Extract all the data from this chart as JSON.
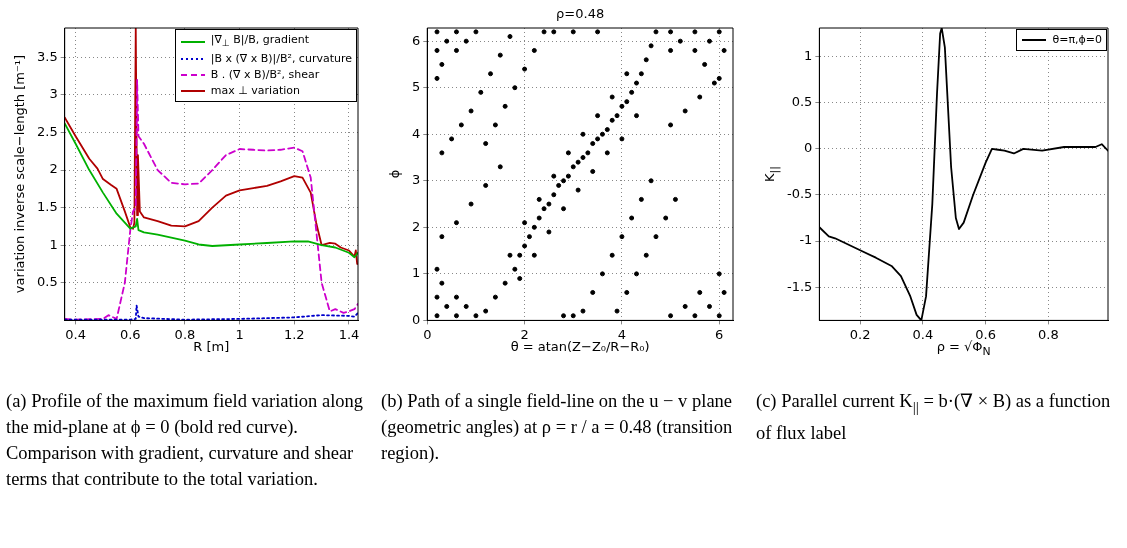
{
  "chart_data": [
    {
      "type": "line",
      "xlabel": "R [m]",
      "ylabel": "variation inverse scale−length [m⁻¹]",
      "xlim": [
        0.36,
        1.433
      ],
      "xticks": [
        0.4,
        0.6,
        0.8,
        1,
        1.2,
        1.4
      ],
      "ylim": [
        0,
        3.89
      ],
      "yticks": [
        0.5,
        1,
        1.5,
        2,
        2.5,
        3,
        3.5
      ],
      "grid": true,
      "legend": "top right",
      "marker": "none",
      "annotations": [
        "(a) Profile of the maximum field variation along the mid-plane at ϕ = 0 (bold red curve). Comparison with gradient, curvature and shear terms that contribute to the total variation."
      ],
      "series": [
        {
          "name": "|∇$_{⊥}$ B|/B, gradient",
          "color": "#00b000",
          "line_style": "solid",
          "x": [
            0.36,
            0.4,
            0.45,
            0.5,
            0.55,
            0.6,
            0.62,
            0.625,
            0.63,
            0.65,
            0.7,
            0.75,
            0.8,
            0.85,
            0.9,
            1.0,
            1.1,
            1.2,
            1.25,
            1.3,
            1.35,
            1.4,
            1.42,
            1.433
          ],
          "values": [
            2.62,
            2.35,
            2.0,
            1.7,
            1.42,
            1.22,
            1.25,
            1.35,
            1.2,
            1.17,
            1.14,
            1.1,
            1.06,
            1.01,
            0.99,
            1.01,
            1.03,
            1.05,
            1.05,
            1.0,
            0.97,
            0.9,
            0.84,
            0.9
          ]
        },
        {
          "name": "|B x (∇ x B)|/B², curvature",
          "color": "#0000cc",
          "line_style": "dotted",
          "x": [
            0.36,
            0.6,
            0.62,
            0.623,
            0.63,
            0.65,
            0.8,
            1.0,
            1.2,
            1.3,
            1.4,
            1.42,
            1.433
          ],
          "values": [
            0.01,
            0.01,
            0.02,
            0.2,
            0.05,
            0.03,
            0.01,
            0.02,
            0.04,
            0.07,
            0.06,
            0.05,
            0.1
          ]
        },
        {
          "name": "B . (∇ x B)/B², shear",
          "color": "#cc00cc",
          "line_style": "dashed",
          "x": [
            0.36,
            0.4,
            0.5,
            0.52,
            0.55,
            0.58,
            0.6,
            0.61,
            0.62,
            0.625,
            0.63,
            0.65,
            0.7,
            0.75,
            0.8,
            0.85,
            0.9,
            0.95,
            1.0,
            1.05,
            1.1,
            1.15,
            1.2,
            1.23,
            1.26,
            1.28,
            1.3,
            1.33,
            1.35,
            1.38,
            1.4,
            1.42,
            1.433
          ],
          "values": [
            0.02,
            0.01,
            0.02,
            0.07,
            0.02,
            0.5,
            1.2,
            1.45,
            1.5,
            3.2,
            2.45,
            2.35,
            2.0,
            1.83,
            1.81,
            1.82,
            2.0,
            2.2,
            2.28,
            2.27,
            2.26,
            2.27,
            2.3,
            2.25,
            1.9,
            1.2,
            0.5,
            0.12,
            0.15,
            0.1,
            0.12,
            0.15,
            0.22
          ]
        },
        {
          "name": "max ⊥ variation",
          "color": "#b00000",
          "line_style": "solid",
          "x": [
            0.36,
            0.4,
            0.45,
            0.48,
            0.5,
            0.53,
            0.55,
            0.58,
            0.6,
            0.61,
            0.615,
            0.62,
            0.625,
            0.628,
            0.635,
            0.65,
            0.7,
            0.75,
            0.8,
            0.85,
            0.9,
            0.95,
            1.0,
            1.05,
            1.1,
            1.15,
            1.2,
            1.23,
            1.26,
            1.28,
            1.3,
            1.33,
            1.35,
            1.37,
            1.4,
            1.42,
            1.425,
            1.43
          ],
          "values": [
            2.7,
            2.45,
            2.15,
            2.02,
            1.88,
            1.8,
            1.75,
            1.45,
            1.24,
            1.22,
            1.3,
            3.89,
            1.4,
            2.2,
            1.45,
            1.37,
            1.32,
            1.26,
            1.25,
            1.32,
            1.5,
            1.66,
            1.73,
            1.76,
            1.79,
            1.85,
            1.92,
            1.9,
            1.7,
            1.3,
            1.0,
            1.03,
            1.02,
            0.97,
            0.93,
            0.85,
            0.93,
            0.75
          ]
        }
      ]
    },
    {
      "type": "scatter",
      "title": "ρ=0.48",
      "xlabel": "θ = atan(Z−Z₀/R−R₀)",
      "ylabel": "ϕ",
      "xlim": [
        0,
        6.283
      ],
      "xticks": [
        0,
        2,
        4,
        6
      ],
      "ylim": [
        0,
        6.283
      ],
      "yticks": [
        0,
        1,
        2,
        3,
        4,
        5,
        6
      ],
      "grid": true,
      "marker": "circle",
      "annotations": [
        "(b) Path of a single field-line on the u − v plane (geometric angles) at ρ = r / a = 0.48 (transition region)."
      ],
      "series": [
        {
          "color": "#000000",
          "x": [
            1.2,
            1.4,
            1.6,
            1.8,
            1.9,
            2.0,
            2.1,
            2.2,
            2.3,
            2.4,
            2.5,
            2.6,
            2.7,
            2.8,
            2.9,
            3.0,
            3.1,
            3.2,
            3.3,
            3.4,
            3.5,
            3.6,
            3.7,
            3.8,
            3.9,
            4.0,
            4.1,
            4.2,
            4.3,
            4.4,
            4.5,
            4.6,
            4.7,
            1.7,
            2.0,
            2.3,
            2.6,
            2.9,
            3.2,
            3.5,
            3.8,
            4.1,
            1.9,
            2.2,
            2.5,
            2.8,
            3.1,
            3.4,
            3.7,
            4.0,
            4.3,
            0.3,
            0.5,
            0.7,
            0.9,
            1.1,
            1.3,
            1.5,
            1.7,
            1.2,
            1.4,
            1.6,
            1.8,
            2.0,
            2.2,
            2.4,
            0.3,
            0.6,
            0.9,
            1.2,
            1.5,
            3.9,
            4.1,
            4.3,
            4.5,
            4.7,
            4.9,
            5.1,
            3.2,
            3.4,
            3.6,
            3.8,
            4.0,
            4.2,
            4.4,
            4.6,
            5.0,
            5.3,
            5.6,
            5.9,
            0.2,
            0.6,
            1.0,
            0.4,
            0.8,
            0.2,
            0.6,
            0.3,
            0.2,
            5.0,
            5.5,
            6.0,
            5.2,
            5.8,
            5.0,
            5.5,
            6.1,
            5.7,
            6.0,
            0.2,
            0.6,
            1.0,
            0.4,
            0.8,
            0.2,
            0.6,
            0.3,
            0.2,
            5.0,
            5.5,
            6.0,
            5.3,
            5.8,
            5.6,
            6.1,
            6.0,
            2.6,
            3.0,
            3.5,
            2.8,
            3.0
          ],
          "values": [
            0.2,
            0.5,
            0.8,
            1.1,
            1.4,
            1.6,
            1.8,
            2.0,
            2.2,
            2.4,
            2.5,
            2.7,
            2.9,
            3.0,
            3.1,
            3.3,
            3.4,
            3.5,
            3.6,
            3.8,
            3.9,
            4.0,
            4.1,
            4.3,
            4.4,
            4.6,
            4.7,
            4.9,
            5.1,
            5.3,
            5.6,
            5.9,
            6.2,
            1.4,
            2.1,
            2.6,
            3.1,
            3.6,
            4.0,
            4.4,
            4.8,
            5.3,
            0.9,
            1.4,
            1.9,
            2.4,
            2.8,
            3.2,
            3.6,
            3.9,
            4.4,
            3.6,
            3.9,
            4.2,
            4.5,
            4.9,
            5.3,
            5.7,
            6.1,
            3.8,
            4.2,
            4.6,
            5.0,
            5.4,
            5.8,
            6.2,
            1.8,
            2.1,
            2.5,
            2.9,
            3.3,
            0.2,
            0.6,
            1.0,
            1.4,
            1.8,
            2.2,
            2.6,
            0.2,
            0.6,
            1.0,
            1.4,
            1.8,
            2.2,
            2.6,
            3.0,
            4.2,
            4.5,
            4.8,
            5.1,
            6.2,
            6.2,
            6.2,
            6.0,
            6.0,
            5.8,
            5.8,
            5.5,
            5.2,
            6.2,
            6.2,
            6.2,
            6.0,
            6.0,
            5.8,
            5.8,
            5.8,
            5.5,
            5.2,
            0.1,
            0.1,
            0.1,
            0.3,
            0.3,
            0.5,
            0.5,
            0.8,
            1.1,
            0.1,
            0.1,
            0.1,
            0.3,
            0.3,
            0.6,
            0.6,
            1.0,
            6.2,
            6.2,
            6.2,
            0.1,
            0.1
          ]
        }
      ]
    },
    {
      "type": "line",
      "xlabel": "ρ = √Φ$_{N}$",
      "ylabel": "K$_{||}$",
      "xlim": [
        0.07,
        0.99
      ],
      "xticks": [
        0.2,
        0.4,
        0.6,
        0.8
      ],
      "ylim": [
        -1.86,
        1.31
      ],
      "yticks": [
        -1.5,
        -1,
        -0.5,
        0,
        0.5,
        1
      ],
      "grid": true,
      "legend": "top right",
      "marker": "none",
      "annotations": [
        "(c) Parallel current K$_{||}$ = b·(∇ × B) as a function of flux label"
      ],
      "series": [
        {
          "name": "θ=π,ϕ=0",
          "color": "#000000",
          "line_style": "solid",
          "x": [
            0.07,
            0.1,
            0.12,
            0.2,
            0.25,
            0.3,
            0.33,
            0.36,
            0.38,
            0.395,
            0.41,
            0.43,
            0.445,
            0.455,
            0.46,
            0.47,
            0.49,
            0.505,
            0.515,
            0.53,
            0.56,
            0.6,
            0.62,
            0.64,
            0.66,
            0.69,
            0.72,
            0.78,
            0.85,
            0.9,
            0.95,
            0.97,
            0.99
          ],
          "values": [
            -0.85,
            -0.95,
            -0.97,
            -1.1,
            -1.18,
            -1.27,
            -1.38,
            -1.6,
            -1.8,
            -1.86,
            -1.6,
            -0.6,
            0.6,
            1.25,
            1.31,
            1.1,
            -0.2,
            -0.75,
            -0.87,
            -0.8,
            -0.5,
            -0.15,
            0.0,
            -0.01,
            -0.02,
            -0.05,
            0.0,
            -0.02,
            0.02,
            0.02,
            0.02,
            0.05,
            -0.02
          ]
        }
      ]
    }
  ]
}
